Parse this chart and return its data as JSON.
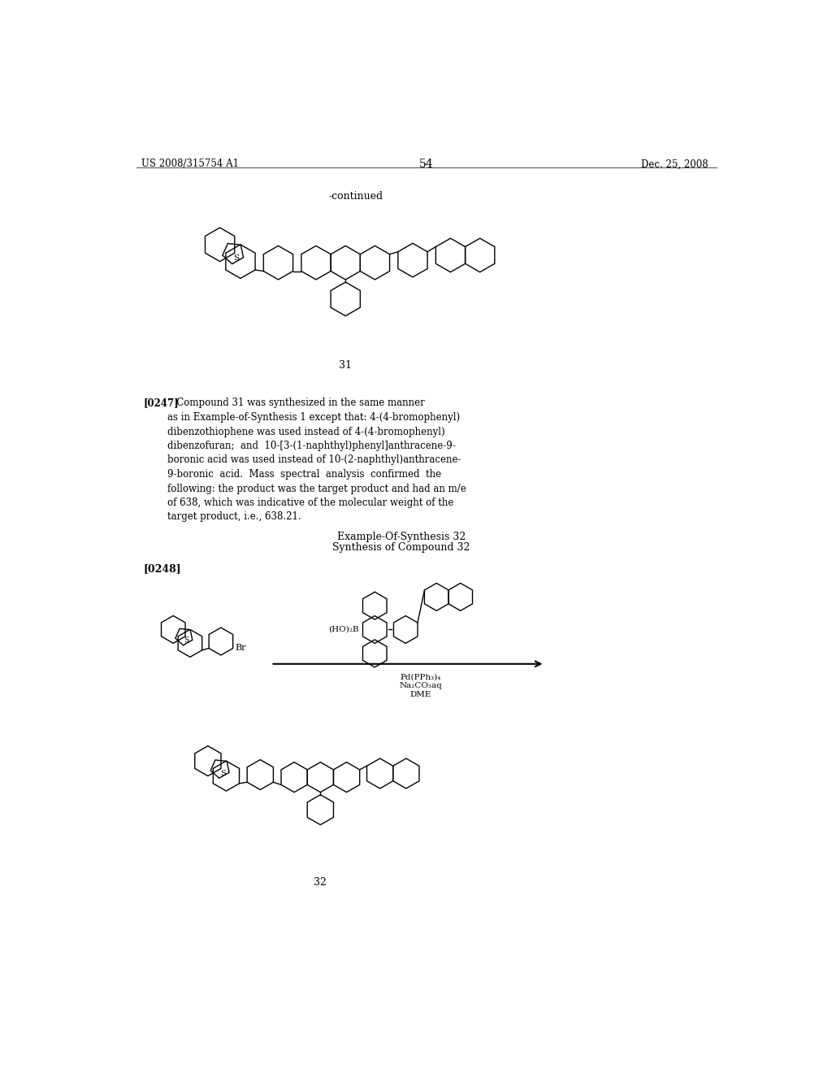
{
  "page_number": "54",
  "patent_left": "US 2008/315754 A1",
  "patent_right": "Dec. 25, 2008",
  "continued_label": "-continued",
  "compound31_label": "31",
  "compound32_label": "32",
  "synthesis32_title1": "Example-Of-Synthesis 32",
  "synthesis32_title2": "Synthesis of Compound 32",
  "paragraph_0248": "[0248]",
  "reaction_label_HO2B": "(HO)₂B",
  "reaction_label_Br": "Br",
  "reaction_reagent1": "Pd(PPh₃)₄",
  "reaction_reagent2": "Na₂CO₃aq",
  "reaction_reagent3": "DME",
  "bg_color": "#ffffff",
  "text_color": "#000000",
  "para0247_bold": "[0247]",
  "para0247_text": "   Compound 31 was synthesized in the same manner\nas in Example-of-Synthesis 1 except that: 4-(4-bromophenyl)\ndibenzothiophene was used instead of 4-(4-bromophenyl)\ndibenzofuran;  and  10-[3-(1-naphthyl)phenyl]anthracene-9-\nboronic acid was used instead of 10-(2-naphthyl)anthracene-\n9-boronic  acid.  Mass  spectral  analysis  confirmed  the\nfollowing: the product was the target product and had an m/e\nof 638, which was indicative of the molecular weight of the\ntarget product, i.e., 638.21."
}
